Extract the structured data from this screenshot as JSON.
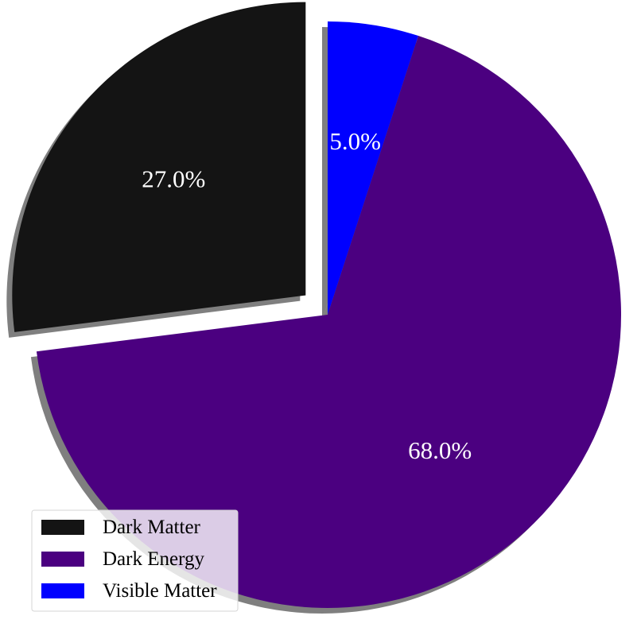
{
  "chart_data": {
    "type": "pie",
    "start_angle_deg": 90,
    "direction": "clockwise",
    "shadow": true,
    "legend_location": "lower-left",
    "title": "",
    "slices": [
      {
        "label": "Visible Matter",
        "value": 5.0,
        "pct_label": "5.0%",
        "color": "#0000ff",
        "explode": 0.0
      },
      {
        "label": "Dark Energy",
        "value": 68.0,
        "pct_label": "68.0%",
        "color": "#4b0080",
        "explode": 0.0
      },
      {
        "label": "Dark Matter",
        "value": 27.0,
        "pct_label": "27.0%",
        "color": "#141414",
        "explode": 0.1
      }
    ],
    "legend": [
      {
        "label": "Dark Matter",
        "color": "#141414"
      },
      {
        "label": "Dark Energy",
        "color": "#4b0080"
      },
      {
        "label": "Visible Matter",
        "color": "#0000ff"
      }
    ]
  }
}
